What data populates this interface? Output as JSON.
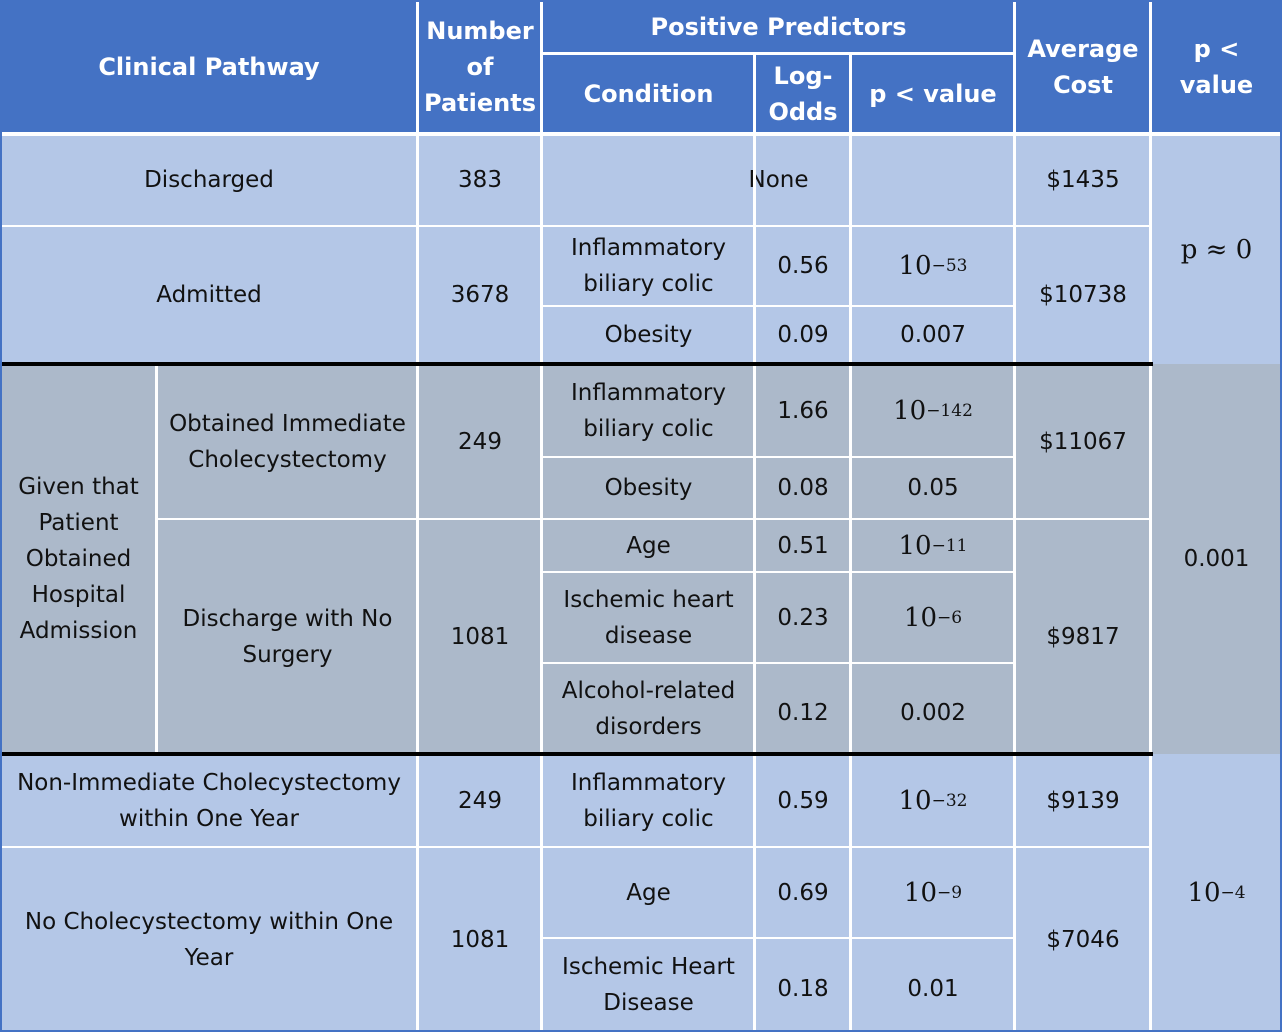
{
  "header": {
    "clinical_pathway": "Clinical Pathway",
    "number_of_patients": "Number of Patients",
    "positive_predictors": "Positive Predictors",
    "condition": "Condition",
    "log_odds": "Log-Odds",
    "p_value": "p < value",
    "average_cost": "Average Cost",
    "group_p_value": "p < value"
  },
  "rows": {
    "discharged": {
      "pathway": "Discharged",
      "patients": "383",
      "predictor_none": "None",
      "cost": "$1435"
    },
    "admitted": {
      "pathway": "Admitted",
      "patients": "3678",
      "cost": "$10738",
      "predictors": [
        {
          "condition": "Inflammatory biliary colic",
          "log_odds": "0.56",
          "p_base": "10",
          "p_exp": "−53"
        },
        {
          "condition": "Obesity",
          "log_odds": "0.09",
          "p_value": "0.007"
        }
      ]
    },
    "given_admission": {
      "label": "Given that Patient Obtained Hospital Admission",
      "immediate": {
        "pathway": "Obtained Immediate Cholecystectomy",
        "patients": "249",
        "cost": "$11067",
        "predictors": [
          {
            "condition": "Inflammatory biliary colic",
            "log_odds": "1.66",
            "p_base": "10",
            "p_exp": "−142"
          },
          {
            "condition": "Obesity",
            "log_odds": "0.08",
            "p_value": "0.05"
          }
        ]
      },
      "no_surgery": {
        "pathway": "Discharge with No Surgery",
        "patients": "1081",
        "cost": "$9817",
        "predictors": [
          {
            "condition": "Age",
            "log_odds": "0.51",
            "p_base": "10",
            "p_exp": "−11"
          },
          {
            "condition": "Ischemic heart disease",
            "log_odds": "0.23",
            "p_base": "10",
            "p_exp": "−6"
          },
          {
            "condition": "Alcohol-related disorders",
            "log_odds": "0.12",
            "p_value": "0.002"
          }
        ]
      }
    },
    "non_immediate": {
      "pathway": "Non-Immediate Cholecystectomy within One Year",
      "patients": "249",
      "cost": "$9139",
      "predictors": [
        {
          "condition": "Inflammatory biliary colic",
          "log_odds": "0.59",
          "p_base": "10",
          "p_exp": "−32"
        }
      ]
    },
    "no_chole": {
      "pathway": "No Cholecystectomy within One Year",
      "patients": "1081",
      "cost": "$7046",
      "predictors": [
        {
          "condition": "Age",
          "log_odds": "0.69",
          "p_base": "10",
          "p_exp": "−9"
        },
        {
          "condition": "Ischemic Heart Disease",
          "log_odds": "0.18",
          "p_value": "0.01"
        }
      ]
    }
  },
  "group_p_values": {
    "block1": "p ≈ 0",
    "block2": "0.001",
    "block3_base": "10",
    "block3_exp": "−4"
  },
  "colors": {
    "header": "#4472c4",
    "light_blue": "#b4c7e7",
    "gray": "#acb9ca",
    "divider": "#000000"
  }
}
